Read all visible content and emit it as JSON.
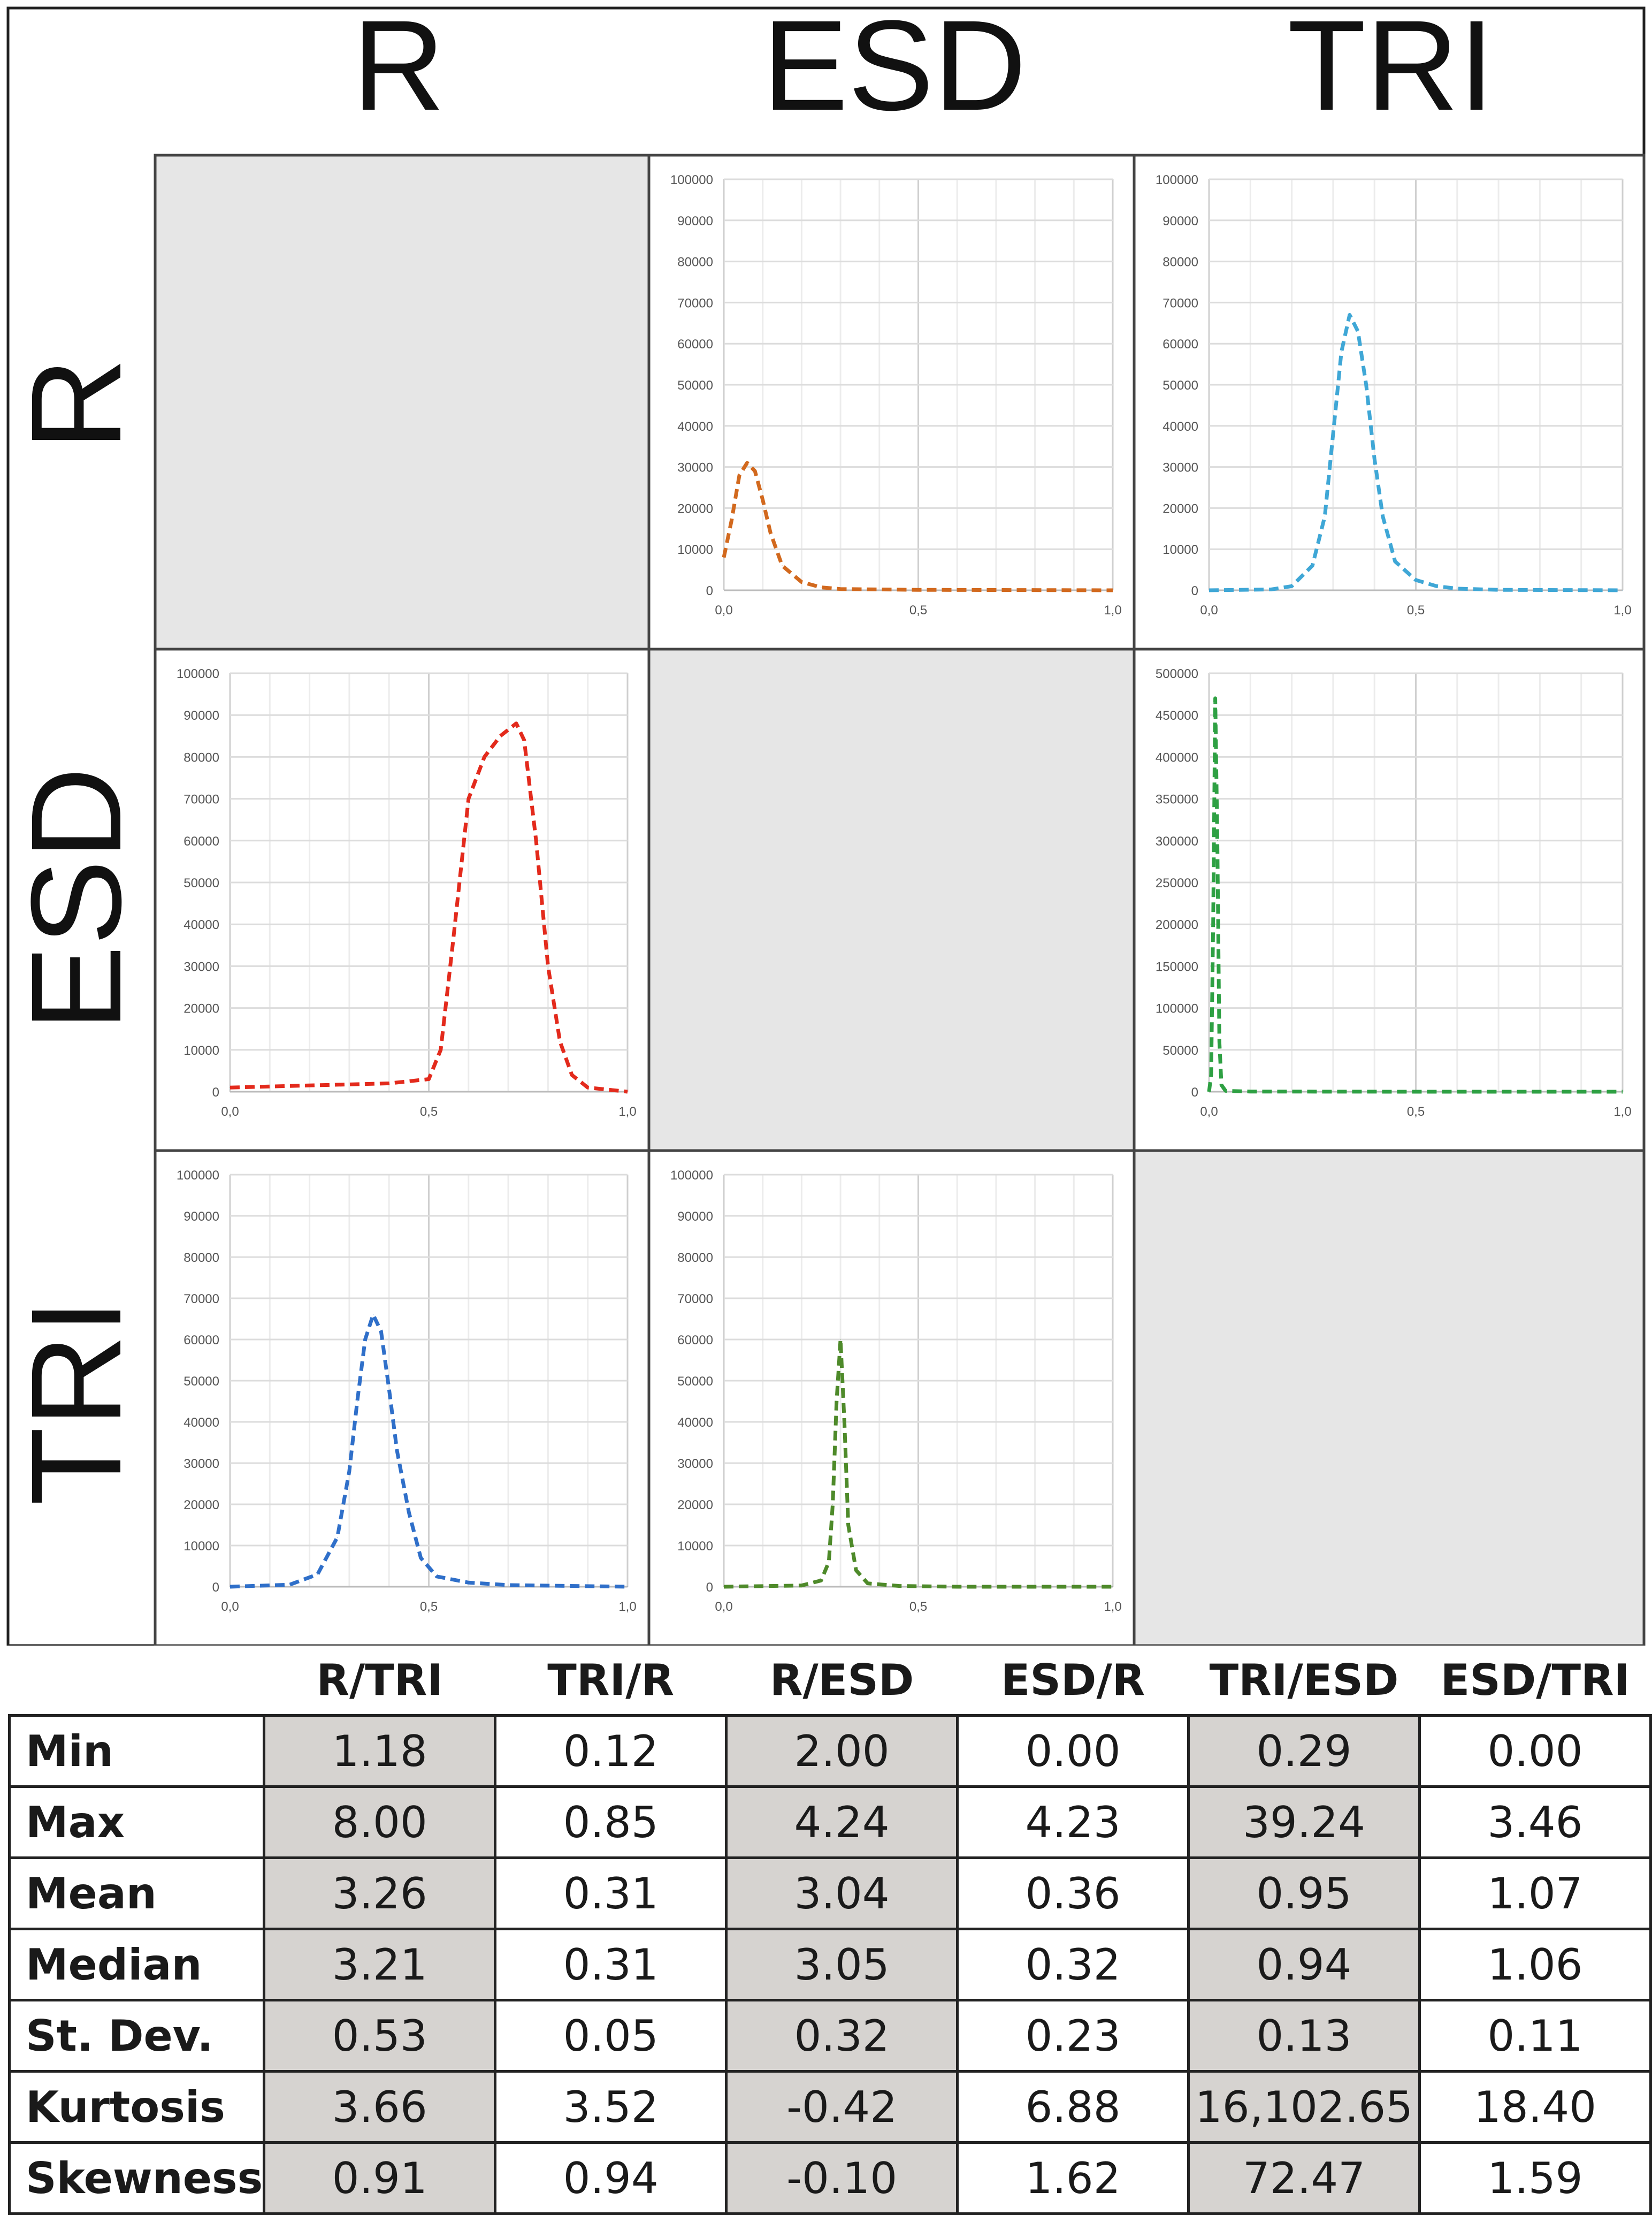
{
  "matrix": {
    "column_headers": [
      "R",
      "ESD",
      "TRI"
    ],
    "row_headers": [
      "R",
      "ESD",
      "TRI"
    ]
  },
  "chart_data": [
    {
      "type": "line",
      "row": "R",
      "col": "ESD",
      "color": "#d2691e",
      "x": [
        0.0,
        0.02,
        0.04,
        0.06,
        0.08,
        0.1,
        0.12,
        0.15,
        0.2,
        0.25,
        0.3,
        0.5,
        0.75,
        1.0
      ],
      "y": [
        8000,
        17000,
        28000,
        31000,
        29000,
        22000,
        14000,
        6000,
        2000,
        700,
        300,
        100,
        50,
        0
      ],
      "xlim": [
        0,
        1
      ],
      "ylim": [
        0,
        100000
      ],
      "xticks": [
        "0,0",
        "0,5",
        "1,0"
      ],
      "yticks": [
        "0",
        "10000",
        "20000",
        "30000",
        "40000",
        "50000",
        "60000",
        "70000",
        "80000",
        "90000",
        "100000"
      ]
    },
    {
      "type": "line",
      "row": "R",
      "col": "TRI",
      "color": "#3fa7d6",
      "x": [
        0.0,
        0.15,
        0.2,
        0.25,
        0.28,
        0.3,
        0.32,
        0.34,
        0.36,
        0.38,
        0.4,
        0.42,
        0.45,
        0.5,
        0.55,
        0.6,
        0.7,
        1.0
      ],
      "y": [
        0,
        200,
        1000,
        6000,
        18000,
        38000,
        58000,
        67000,
        63000,
        50000,
        32000,
        18000,
        7000,
        2500,
        1000,
        400,
        100,
        0
      ],
      "xlim": [
        0,
        1
      ],
      "ylim": [
        0,
        100000
      ],
      "xticks": [
        "0,0",
        "0,5",
        "1,0"
      ],
      "yticks": [
        "0",
        "10000",
        "20000",
        "30000",
        "40000",
        "50000",
        "60000",
        "70000",
        "80000",
        "90000",
        "100000"
      ]
    },
    {
      "type": "line",
      "row": "ESD",
      "col": "R",
      "color": "#e32a1c",
      "x": [
        0.0,
        0.2,
        0.4,
        0.5,
        0.53,
        0.56,
        0.6,
        0.64,
        0.68,
        0.72,
        0.74,
        0.77,
        0.8,
        0.83,
        0.86,
        0.9,
        1.0
      ],
      "y": [
        1000,
        1500,
        2000,
        3000,
        10000,
        35000,
        70000,
        80000,
        85000,
        88000,
        84000,
        60000,
        30000,
        12000,
        4000,
        1000,
        0
      ],
      "xlim": [
        0,
        1
      ],
      "ylim": [
        0,
        100000
      ],
      "xticks": [
        "0,0",
        "0,5",
        "1,0"
      ],
      "yticks": [
        "0",
        "10000",
        "20000",
        "30000",
        "40000",
        "50000",
        "60000",
        "70000",
        "80000",
        "90000",
        "100000"
      ]
    },
    {
      "type": "line",
      "row": "ESD",
      "col": "TRI",
      "color": "#2ea043",
      "x": [
        0.0,
        0.005,
        0.01,
        0.015,
        0.02,
        0.025,
        0.03,
        0.04,
        0.1,
        0.5,
        1.0
      ],
      "y": [
        0,
        20000,
        200000,
        470000,
        300000,
        60000,
        8000,
        1000,
        200,
        0,
        0
      ],
      "xlim": [
        0,
        1
      ],
      "ylim": [
        0,
        500000
      ],
      "xticks": [
        "0,0",
        "0,5",
        "1,0"
      ],
      "yticks": [
        "0",
        "50000",
        "100000",
        "150000",
        "200000",
        "250000",
        "300000",
        "350000",
        "400000",
        "450000",
        "500000"
      ]
    },
    {
      "type": "line",
      "row": "TRI",
      "col": "R",
      "color": "#2f6fc9",
      "x": [
        0.0,
        0.15,
        0.22,
        0.27,
        0.3,
        0.32,
        0.34,
        0.36,
        0.38,
        0.4,
        0.42,
        0.45,
        0.48,
        0.52,
        0.6,
        0.7,
        1.0
      ],
      "y": [
        0,
        500,
        3000,
        12000,
        28000,
        45000,
        60000,
        66000,
        62000,
        48000,
        33000,
        18000,
        7000,
        2500,
        1000,
        400,
        0
      ],
      "xlim": [
        0,
        1
      ],
      "ylim": [
        0,
        100000
      ],
      "xticks": [
        "0,0",
        "0,5",
        "1,0"
      ],
      "yticks": [
        "0",
        "10000",
        "20000",
        "30000",
        "40000",
        "50000",
        "60000",
        "70000",
        "80000",
        "90000",
        "100000"
      ]
    },
    {
      "type": "line",
      "row": "TRI",
      "col": "ESD",
      "color": "#4e8a2a",
      "x": [
        0.0,
        0.2,
        0.25,
        0.27,
        0.28,
        0.29,
        0.3,
        0.31,
        0.32,
        0.34,
        0.37,
        0.45,
        0.6,
        1.0
      ],
      "y": [
        0,
        300,
        1500,
        6000,
        20000,
        45000,
        60000,
        40000,
        15000,
        4000,
        800,
        200,
        0,
        0
      ],
      "xlim": [
        0,
        1
      ],
      "ylim": [
        0,
        100000
      ],
      "xticks": [
        "0,0",
        "0,5",
        "1,0"
      ],
      "yticks": [
        "0",
        "10000",
        "20000",
        "30000",
        "40000",
        "50000",
        "60000",
        "70000",
        "80000",
        "90000",
        "100000"
      ]
    }
  ],
  "table": {
    "headers": [
      "R/TRI",
      "TRI/R",
      "R/ESD",
      "ESD/R",
      "TRI/ESD",
      "ESD/TRI"
    ],
    "rows": [
      {
        "label": "Min",
        "values": [
          "1.18",
          "0.12",
          "2.00",
          "0.00",
          "0.29",
          "0.00"
        ]
      },
      {
        "label": "Max",
        "values": [
          "8.00",
          "0.85",
          "4.24",
          "4.23",
          "39.24",
          "3.46"
        ]
      },
      {
        "label": "Mean",
        "values": [
          "3.26",
          "0.31",
          "3.04",
          "0.36",
          "0.95",
          "1.07"
        ]
      },
      {
        "label": "Median",
        "values": [
          "3.21",
          "0.31",
          "3.05",
          "0.32",
          "0.94",
          "1.06"
        ]
      },
      {
        "label": "St. Dev.",
        "values": [
          "0.53",
          "0.05",
          "0.32",
          "0.23",
          "0.13",
          "0.11"
        ]
      },
      {
        "label": "Kurtosis",
        "values": [
          "3.66",
          "3.52",
          "-0.42",
          "6.88",
          "16,102.65",
          "18.40"
        ]
      },
      {
        "label": "Skewness",
        "values": [
          "0.91",
          "0.94",
          "-0.10",
          "1.62",
          "72.47",
          "1.59"
        ]
      }
    ]
  }
}
